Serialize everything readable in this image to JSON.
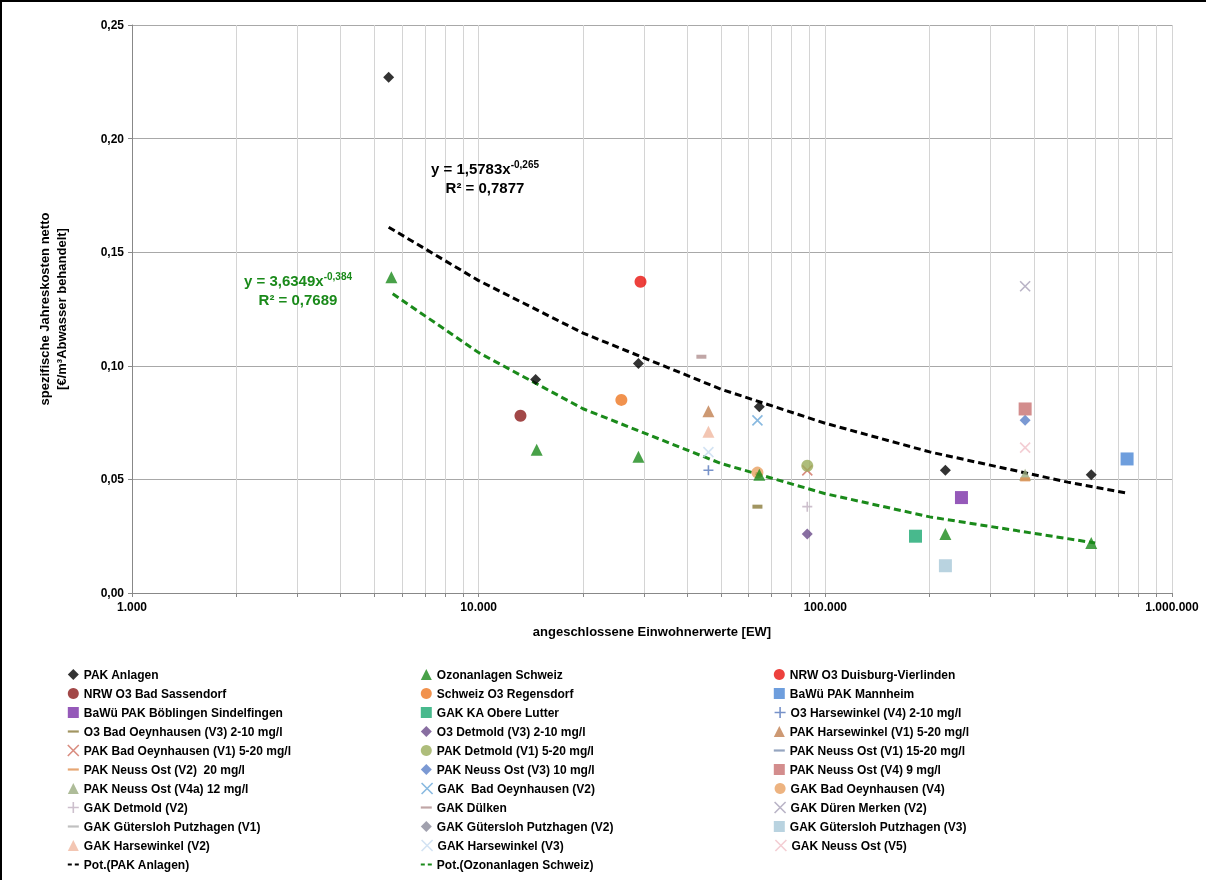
{
  "chart_data": {
    "type": "scatter",
    "xlabel": "angeschlossene Einwohnerwerte [EW]",
    "ylabel": "spezifische Jahreskosten netto\n[€/m³Abwasser behandelt]",
    "log": "x",
    "grid": true,
    "legend": "bottom",
    "xlim": [
      1000,
      1000000
    ],
    "xticks": [
      {
        "value": 1000,
        "label": "1.000"
      },
      {
        "value": 2000,
        "label": null
      },
      {
        "value": 3000,
        "label": null
      },
      {
        "value": 4000,
        "label": null
      },
      {
        "value": 5000,
        "label": null
      },
      {
        "value": 6000,
        "label": null
      },
      {
        "value": 7000,
        "label": null
      },
      {
        "value": 8000,
        "label": null
      },
      {
        "value": 9000,
        "label": null
      },
      {
        "value": 10000,
        "label": "10.000"
      },
      {
        "value": 20000,
        "label": null
      },
      {
        "value": 30000,
        "label": null
      },
      {
        "value": 40000,
        "label": null
      },
      {
        "value": 50000,
        "label": null
      },
      {
        "value": 60000,
        "label": null
      },
      {
        "value": 70000,
        "label": null
      },
      {
        "value": 80000,
        "label": null
      },
      {
        "value": 90000,
        "label": null
      },
      {
        "value": 100000,
        "label": "100.000"
      },
      {
        "value": 200000,
        "label": null
      },
      {
        "value": 300000,
        "label": null
      },
      {
        "value": 400000,
        "label": null
      },
      {
        "value": 500000,
        "label": null
      },
      {
        "value": 600000,
        "label": null
      },
      {
        "value": 700000,
        "label": null
      },
      {
        "value": 800000,
        "label": null
      },
      {
        "value": 900000,
        "label": null
      },
      {
        "value": 1000000,
        "label": "1.000.000"
      }
    ],
    "ylim": [
      0,
      0.25
    ],
    "yticks": [
      {
        "value": 0,
        "label": "0,00"
      },
      {
        "value": 0.05,
        "label": "0,05"
      },
      {
        "value": 0.1,
        "label": "0,10"
      },
      {
        "value": 0.15,
        "label": "0,15"
      },
      {
        "value": 0.2,
        "label": "0,20"
      },
      {
        "value": 0.25,
        "label": "0,25"
      }
    ],
    "annotations": [
      "y = 1,5783x$^{-0,265}$\nR² = 0,7877",
      "y = 3,6349x$^{-0,384}$\nR² = 0,7689"
    ],
    "series": [
      {
        "name": "PAK Anlagen",
        "type": "scatter",
        "marker": "diamond",
        "color": "#000000",
        "x": [
          5500,
          14600,
          28900,
          64500,
          222000,
          585000
        ],
        "values": [
          0.227,
          0.094,
          0.101,
          0.082,
          0.054,
          0.052
        ]
      },
      {
        "name": "Ozonanlagen Schweiz",
        "type": "scatter",
        "marker": "triangle",
        "color": "#1a8a1a",
        "x": [
          5600,
          14700,
          28900,
          64500,
          222000,
          585000
        ],
        "values": [
          0.139,
          0.063,
          0.06,
          0.052,
          0.026,
          0.022
        ]
      },
      {
        "name": "NRW O3 Duisburg-Vierlinden",
        "type": "scatter",
        "marker": "circle",
        "color": "#e8120c",
        "x": [
          29300
        ],
        "values": [
          0.137
        ]
      },
      {
        "name": "NRW O3 Bad Sassendorf",
        "type": "scatter",
        "marker": "circle",
        "color": "#8b1a1a",
        "x": [
          13200
        ],
        "values": [
          0.078
        ]
      },
      {
        "name": "Schweiz O3 Regensdorf",
        "type": "scatter",
        "marker": "circle",
        "color": "#ee7722",
        "x": [
          25800
        ],
        "values": [
          0.085
        ]
      },
      {
        "name": "BaWü PAK Mannheim",
        "type": "scatter",
        "marker": "square",
        "color": "#4a86d4",
        "x": [
          742000
        ],
        "values": [
          0.059
        ]
      },
      {
        "name": "BaWü PAK Böblingen Sindelfingen",
        "type": "scatter",
        "marker": "square",
        "color": "#7b2fa8",
        "x": [
          247000
        ],
        "values": [
          0.042
        ]
      },
      {
        "name": "GAK KA Obere Lutter",
        "type": "scatter",
        "marker": "square",
        "color": "#1aa870",
        "x": [
          182000
        ],
        "values": [
          0.025
        ]
      },
      {
        "name": "O3 Harsewinkel (V4) 2-10 mg/l",
        "type": "scatter",
        "marker": "plus",
        "color": "#5577bb",
        "x": [
          46000
        ],
        "values": [
          0.054
        ]
      },
      {
        "name": "O3 Bad Oeynhausen (V3) 2-10 mg/l",
        "color": "#8a7a3a",
        "x": [
          63700
        ],
        "values": [
          0.038
        ]
      },
      {
        "name": "O3 Detmold (V3) 2-10 mg/l",
        "type": "scatter",
        "marker": "diamond",
        "color": "#6a4a8a",
        "x": [
          88700
        ],
        "values": [
          0.026
        ]
      },
      {
        "name": "PAK Harsewinkel (V1) 5-20 mg/l",
        "type": "scatter",
        "marker": "triangle",
        "color": "#c08050",
        "x": [
          46000
        ],
        "values": [
          0.08
        ]
      },
      {
        "name": "PAK Bad Oeynhausen (V1) 5-20 mg/l",
        "type": "scatter",
        "marker": "cross",
        "color": "#d07060",
        "x": [
          88700
        ],
        "values": [
          0.054
        ]
      },
      {
        "name": "PAK Detmold (V1) 5-20 mg/l",
        "type": "scatter",
        "marker": "circle",
        "color": "#9aad5a",
        "x": [
          88700
        ],
        "values": [
          0.056
        ]
      },
      {
        "name": "PAK Neuss Ost (V1) 15-20 mg/l",
        "color": "#7a8fb0",
        "x": [
          null
        ],
        "values": [
          null
        ]
      },
      {
        "name": "PAK Neuss Ost (V2)  20 mg/l",
        "color": "#e09050",
        "x": [
          377000
        ],
        "values": [
          0.05
        ]
      },
      {
        "name": "PAK Neuss Ost (V3) 10 mg/l",
        "type": "scatter",
        "marker": "diamond",
        "color": "#5a80c8",
        "x": [
          377000
        ],
        "values": [
          0.076
        ]
      },
      {
        "name": "PAK Neuss Ost (V4) 9 mg/l",
        "type": "scatter",
        "marker": "square",
        "color": "#c87070",
        "x": [
          377000
        ],
        "values": [
          0.081
        ]
      },
      {
        "name": "PAK Neuss Ost (V4a) 12 mg/l",
        "type": "scatter",
        "marker": "triangle",
        "color": "#9aab80",
        "x": [
          377000
        ],
        "values": [
          0.052
        ]
      },
      {
        "name": "GAK  Bad Oeynhausen (V2)",
        "type": "scatter",
        "marker": "cross",
        "color": "#6aa8d8",
        "x": [
          63700
        ],
        "values": [
          0.076
        ]
      },
      {
        "name": "GAK Bad Oeynhausen (V4)",
        "type": "scatter",
        "marker": "circle",
        "color": "#e8a060",
        "x": [
          63700
        ],
        "values": [
          0.053
        ]
      },
      {
        "name": "GAK Detmold (V2)",
        "type": "scatter",
        "marker": "plus",
        "color": "#c0b0c0",
        "x": [
          88700
        ],
        "values": [
          0.038
        ]
      },
      {
        "name": "GAK Dülken",
        "color": "#b09090",
        "x": [
          43900
        ],
        "values": [
          0.104
        ]
      },
      {
        "name": "GAK Düren Merken (V2)",
        "type": "scatter",
        "marker": "cross",
        "color": "#a8a0b8",
        "x": [
          377000
        ],
        "values": [
          0.135
        ]
      },
      {
        "name": "GAK Gütersloh Putzhagen (V1)",
        "color": "#b0b0b0",
        "x": [
          null
        ],
        "values": [
          null
        ]
      },
      {
        "name": "GAK Gütersloh Putzhagen (V2)",
        "type": "scatter",
        "marker": "diamond",
        "color": "#8a8a9a",
        "x": [
          null
        ],
        "values": [
          null
        ]
      },
      {
        "name": "GAK Gütersloh Putzhagen (V3)",
        "type": "scatter",
        "marker": "square",
        "color": "#a8c8d8",
        "x": [
          222000
        ],
        "values": [
          0.012
        ]
      },
      {
        "name": "GAK Harsewinkel (V2)",
        "type": "scatter",
        "marker": "triangle",
        "color": "#f0b8a0",
        "x": [
          46000
        ],
        "values": [
          0.071
        ]
      },
      {
        "name": "GAK Harsewinkel (V3)",
        "type": "scatter",
        "marker": "cross",
        "color": "#c8dcf0",
        "x": [
          46000
        ],
        "values": [
          0.062
        ]
      },
      {
        "name": "GAK Neuss Ost (V5)",
        "type": "scatter",
        "marker": "cross",
        "color": "#f0c0c8",
        "x": [
          377000
        ],
        "values": [
          0.064
        ]
      },
      {
        "name": "Pot.(PAK Anlagen)",
        "type": "line",
        "marker": "none",
        "line_style": "dashed",
        "color": "#000000",
        "x": [
          5500,
          10000,
          20000,
          50000,
          100000,
          200000,
          500000,
          750000
        ],
        "values": [
          0.161,
          0.1375,
          0.1144,
          0.0897,
          0.0747,
          0.0621,
          0.0488,
          0.0438
        ]
      },
      {
        "name": "Pot.(Ozonanlagen Schweiz)",
        "type": "line",
        "marker": "none",
        "line_style": "dashed",
        "color": "#1a8a1a",
        "x": [
          5650,
          10000,
          20000,
          50000,
          100000,
          200000,
          600000
        ],
        "values": [
          0.1317,
          0.1058,
          0.0811,
          0.057,
          0.0437,
          0.0335,
          0.022
        ]
      }
    ]
  }
}
